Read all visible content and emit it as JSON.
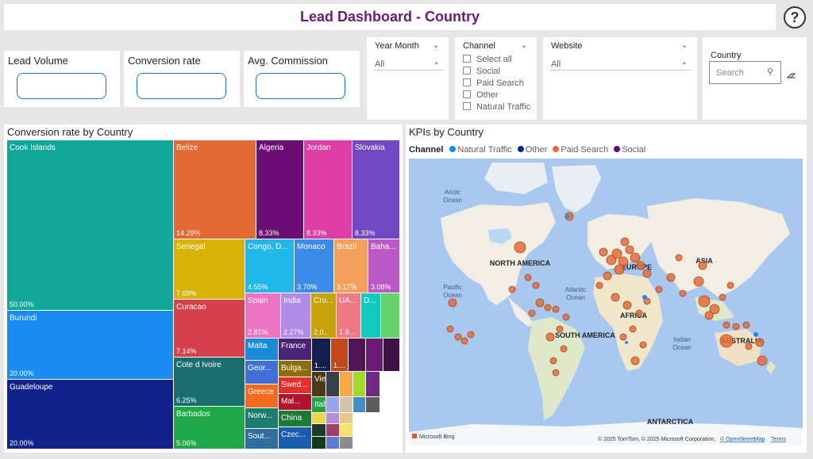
{
  "header": {
    "title": "Lead Dashboard - Country",
    "help": "?"
  },
  "cards": [
    {
      "label": "Lead Volume"
    },
    {
      "label": "Conversion rate"
    },
    {
      "label": "Avg. Commission"
    }
  ],
  "slicers": {
    "year_month": {
      "title": "Year Month",
      "value": "All"
    },
    "channel": {
      "title": "Channel",
      "items": [
        "Select all",
        "Social",
        "Paid Search",
        "Other",
        "Natural Traffic"
      ]
    },
    "website": {
      "title": "Website",
      "value": "All"
    },
    "country": {
      "title": "Country",
      "placeholder": "Search"
    }
  },
  "treemap": {
    "title": "Conversion rate by Country",
    "cells": [
      {
        "name": "Cook Islands",
        "value": "50.00%",
        "color": "#12a899"
      },
      {
        "name": "Burundi",
        "value": "20.00%",
        "color": "#1a8bf0"
      },
      {
        "name": "Guadeloupe",
        "value": "20.00%",
        "color": "#12228c"
      },
      {
        "name": "Belize",
        "value": "14.29%",
        "color": "#e26a35"
      },
      {
        "name": "Algeria",
        "value": "8.33%",
        "color": "#6c0e76"
      },
      {
        "name": "Jordan",
        "value": "8.33%",
        "color": "#dd3ea6"
      },
      {
        "name": "Slovakia",
        "value": "8.33%",
        "color": "#7147c3"
      },
      {
        "name": "Senegal",
        "value": "7.69%",
        "color": "#d6b306"
      },
      {
        "name": "Curacao",
        "value": "7.14%",
        "color": "#d6404c"
      },
      {
        "name": "Cote d Ivoire",
        "value": "6.25%",
        "color": "#1a6e6e"
      },
      {
        "name": "Barbados",
        "value": "5.06%",
        "color": "#1ea84a"
      },
      {
        "name": "Congo, D...",
        "value": "4.55%",
        "color": "#1fb8e8"
      },
      {
        "name": "Monaco",
        "value": "3.70%",
        "color": "#3a8ce8"
      },
      {
        "name": "Brazil",
        "value": "3.17%",
        "color": "#f5a05a"
      },
      {
        "name": "Baha...",
        "value": "3.08%",
        "color": "#bb58c7"
      },
      {
        "name": "Spain",
        "value": "2.81%",
        "color": "#ed74c3"
      },
      {
        "name": "India",
        "value": "2.27%",
        "color": "#b08be8"
      },
      {
        "name": "Cro...",
        "value": "2.0...",
        "color": "#c7a10a"
      },
      {
        "name": "UA...",
        "value": "1.9...",
        "color": "#ef7a85"
      },
      {
        "name": "D...",
        "value": "",
        "color": "#14c9be"
      },
      {
        "name": "",
        "value": "",
        "color": "#64d36a"
      },
      {
        "name": "Malta",
        "value": "",
        "color": "#1a8bd8"
      },
      {
        "name": "France",
        "value": "",
        "color": "#4a2377"
      },
      {
        "name": "",
        "value": "1....",
        "color": "#141e4f"
      },
      {
        "name": "",
        "value": "1....",
        "color": "#c4471b"
      },
      {
        "name": "",
        "value": "",
        "color": "#521556"
      },
      {
        "name": "",
        "value": "",
        "color": "#6b1a75"
      },
      {
        "name": "",
        "value": "",
        "color": "#3e1148"
      },
      {
        "name": "Geor...",
        "value": "",
        "color": "#3f6ed4"
      },
      {
        "name": "Bulga...",
        "value": "",
        "color": "#8a6e0c"
      },
      {
        "name": "Viet ...",
        "value": "",
        "color": "#4a3a16"
      },
      {
        "name": "",
        "value": "",
        "color": "#3a3f4a"
      },
      {
        "name": "",
        "value": "",
        "color": "#f7a94d"
      },
      {
        "name": "",
        "value": "",
        "color": "#a4d826"
      },
      {
        "name": "",
        "value": "",
        "color": "#6d2a80"
      },
      {
        "name": "Greece",
        "value": "",
        "color": "#f36b1d"
      },
      {
        "name": "Swed...",
        "value": "",
        "color": "#e3302f"
      },
      {
        "name": "Italy",
        "value": "",
        "color": "#25a046"
      },
      {
        "name": "",
        "value": "",
        "color": "#9aa4e8"
      },
      {
        "name": "",
        "value": "",
        "color": "#d3c3a8"
      },
      {
        "name": "",
        "value": "",
        "color": "#3f8fc8"
      },
      {
        "name": "",
        "value": "",
        "color": "#5c5c5c"
      },
      {
        "name": "Norw...",
        "value": "",
        "color": "#1a7d6e"
      },
      {
        "name": "Mal...",
        "value": "",
        "color": "#b0142c"
      },
      {
        "name": "",
        "value": "",
        "color": "#f2d44a"
      },
      {
        "name": "",
        "value": "",
        "color": "#b88bd8"
      },
      {
        "name": "",
        "value": "",
        "color": "#e8c88a"
      },
      {
        "name": "Sout...",
        "value": "",
        "color": "#2e6f9e"
      },
      {
        "name": "China",
        "value": "",
        "color": "#1a7a36"
      },
      {
        "name": "",
        "value": "",
        "color": "#1e3a28"
      },
      {
        "name": "",
        "value": "",
        "color": "#a0406a"
      },
      {
        "name": "",
        "value": "",
        "color": "#f7e36a"
      },
      {
        "name": "Hong...",
        "value": "",
        "color": "#d9167c"
      },
      {
        "name": "Czec...",
        "value": "",
        "color": "#1a5cb0"
      },
      {
        "name": "",
        "value": "",
        "color": "#143a1e"
      },
      {
        "name": "",
        "value": "",
        "color": "#5a7fd0"
      },
      {
        "name": "",
        "value": "",
        "color": "#8c8c8c"
      }
    ]
  },
  "map": {
    "title": "KPIs by Country",
    "legend_title": "Channel",
    "legend": [
      {
        "name": "Natural Traffic",
        "color": "#118dff"
      },
      {
        "name": "Other",
        "color": "#12239e"
      },
      {
        "name": "Paid Search",
        "color": "#e66c37"
      },
      {
        "name": "Social",
        "color": "#6b007b"
      }
    ],
    "labels": {
      "arctic": "Arctic",
      "arctic2": "Ocean",
      "north_america": "NORTH AMERICA",
      "europe": "EUROPE",
      "asia": "ASIA",
      "pacific": "Pacific",
      "pacific2": "Ocean",
      "atlantic": "Atlantic",
      "atlantic2": "Ocean",
      "africa": "AFRICA",
      "south_america": "SOUTH AMERICA",
      "indian": "Indian",
      "indian2": "Ocean",
      "australia": "AUSTRALIA",
      "antarctica": "ANTARCTICA"
    },
    "attribution": "© 2025 TomTom, © 2025 Microsoft Corporation,",
    "osm": "© OpenStreetMap",
    "terms": "Terms",
    "logo": "Microsoft Bing"
  }
}
